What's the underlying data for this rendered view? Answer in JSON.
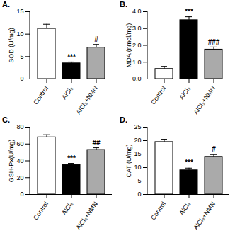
{
  "chart_data": [
    {
      "type": "bar",
      "title": "A.",
      "y_label": "SOD (U/mg)",
      "categories": [
        "Control",
        "AlCl₃",
        "AlCl₃+NMN"
      ],
      "values": [
        11.2,
        3.5,
        7.0
      ],
      "errors": [
        1.0,
        0.3,
        0.7
      ],
      "colors": [
        "#ffffff",
        "#000000",
        "#aaaaaa"
      ],
      "annotations": [
        null,
        "***",
        "#"
      ],
      "ylim": [
        0,
        15
      ],
      "yticks": [
        0,
        5,
        10,
        15
      ]
    },
    {
      "type": "bar",
      "title": "B.",
      "y_label": "MDA (nmol/mg)",
      "categories": [
        "Control",
        "AlCl₃",
        "AlCl₃+NMN"
      ],
      "values": [
        0.6,
        3.5,
        1.75
      ],
      "errors": [
        0.15,
        0.2,
        0.15
      ],
      "colors": [
        "#ffffff",
        "#000000",
        "#aaaaaa"
      ],
      "annotations": [
        null,
        "***",
        "###"
      ],
      "ylim": [
        0,
        4
      ],
      "yticks": [
        0,
        1,
        2,
        3,
        4
      ]
    },
    {
      "type": "bar",
      "title": "C.",
      "y_label": "GSH-Px(U/mg)",
      "categories": [
        "Control",
        "AlCl₃",
        "AlCl₃+NMN"
      ],
      "values": [
        68,
        35,
        53
      ],
      "errors": [
        3,
        2,
        2.5
      ],
      "colors": [
        "#ffffff",
        "#000000",
        "#aaaaaa"
      ],
      "annotations": [
        null,
        "***",
        "##"
      ],
      "ylim": [
        0,
        80
      ],
      "yticks": [
        0,
        20,
        40,
        60,
        80
      ]
    },
    {
      "type": "bar",
      "title": "D.",
      "y_label": "CAT (U/mg)",
      "categories": [
        "Control",
        "AlCl₃",
        "AlCl₃+NMN"
      ],
      "values": [
        19.5,
        9.0,
        14.0
      ],
      "errors": [
        1.0,
        0.8,
        0.8
      ],
      "colors": [
        "#ffffff",
        "#000000",
        "#aaaaaa"
      ],
      "annotations": [
        null,
        "***",
        "#"
      ],
      "ylim": [
        0,
        25
      ],
      "yticks": [
        0,
        5,
        10,
        15,
        20,
        25
      ]
    }
  ]
}
